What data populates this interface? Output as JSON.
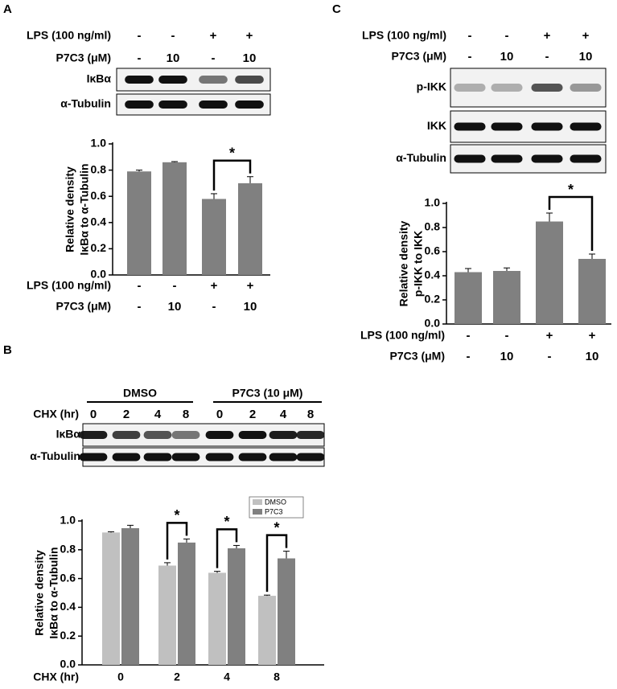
{
  "panels": [
    {
      "letter": "A",
      "treatments": [
        {
          "name": "LPS (100 ng/ml)",
          "lanes": [
            "-",
            "-",
            "+",
            "+"
          ]
        },
        {
          "name": "P7C3 (μM)",
          "lanes": [
            "-",
            "10",
            "-",
            "10"
          ]
        }
      ],
      "blots": [
        "IκBα",
        "α-Tubulin"
      ]
    },
    {
      "letter": "B",
      "groups": [
        "DMSO",
        "P7C3 (10 μM)"
      ],
      "treatments": [
        {
          "name": "CHX (hr)",
          "lanes": [
            "0",
            "2",
            "4",
            "8",
            "0",
            "2",
            "4",
            "8"
          ]
        }
      ],
      "blots": [
        "IκBα",
        "α-Tubulin"
      ]
    },
    {
      "letter": "C",
      "treatments": [
        {
          "name": "LPS (100 ng/ml)",
          "lanes": [
            "-",
            "-",
            "+",
            "+"
          ]
        },
        {
          "name": "P7C3 (μM)",
          "lanes": [
            "-",
            "10",
            "-",
            "10"
          ]
        }
      ],
      "blots": [
        "p-IKK",
        "IKK",
        "α-Tubulin"
      ]
    }
  ],
  "chart_data": [
    {
      "type": "bar",
      "ylabel": [
        "Relative density",
        "IκBα to α-Tubulin"
      ],
      "categories": [
        null,
        null,
        null,
        null
      ],
      "values": [
        0.79,
        0.86,
        0.58,
        0.7
      ],
      "errors": [
        0.01,
        0.005,
        0.04,
        0.05
      ],
      "color": "#808080",
      "ylim": [
        0,
        1
      ],
      "yticks": [
        {
          "value": 0,
          "label": "0.0"
        },
        0.2,
        0.4,
        0.6,
        0.8,
        {
          "value": 1,
          "label": "1.0"
        }
      ],
      "annotations": [
        {
          "label": "*",
          "categories": [
            2,
            3
          ]
        }
      ]
    },
    {
      "type": "grouped-bar",
      "ylabel": [
        "Relative density",
        "IκBα to α-Tubulin"
      ],
      "xlabel": "CHX (hr)",
      "categories": [
        "0",
        "2",
        "4",
        "8"
      ],
      "series": [
        {
          "name": "DMSO",
          "color": "#c0c0c0",
          "values": [
            0.92,
            0.69,
            0.64,
            0.48
          ],
          "errors": [
            0.005,
            0.02,
            0.01,
            0.005
          ]
        },
        {
          "name": "P7C3",
          "color": "#808080",
          "values": [
            0.95,
            0.85,
            0.81,
            0.74
          ],
          "errors": [
            0.02,
            0.025,
            0.02,
            0.05
          ]
        }
      ],
      "ylim": [
        0,
        1
      ],
      "yticks": [
        {
          "value": 0,
          "label": "0.0"
        },
        0.2,
        0.4,
        0.6,
        0.8,
        {
          "value": 1,
          "label": "1.0"
        }
      ],
      "legend": "top-right",
      "annotations": [
        {
          "label": "*",
          "category": 1
        },
        {
          "label": "*",
          "category": 2
        },
        {
          "label": "*",
          "category": 3
        }
      ]
    },
    {
      "type": "bar",
      "ylabel": [
        "Relative density",
        "p-IKK to IKK"
      ],
      "categories": [
        null,
        null,
        null,
        null
      ],
      "values": [
        0.43,
        0.44,
        0.85,
        0.54
      ],
      "errors": [
        0.03,
        0.025,
        0.07,
        0.04
      ],
      "color": "#808080",
      "ylim": [
        0,
        1
      ],
      "yticks": [
        {
          "value": 0,
          "label": "0.0"
        },
        0.2,
        0.4,
        0.6,
        0.8,
        {
          "value": 1,
          "label": "1.0"
        }
      ],
      "annotations": [
        {
          "label": "*",
          "categories": [
            2,
            3
          ]
        }
      ]
    }
  ]
}
